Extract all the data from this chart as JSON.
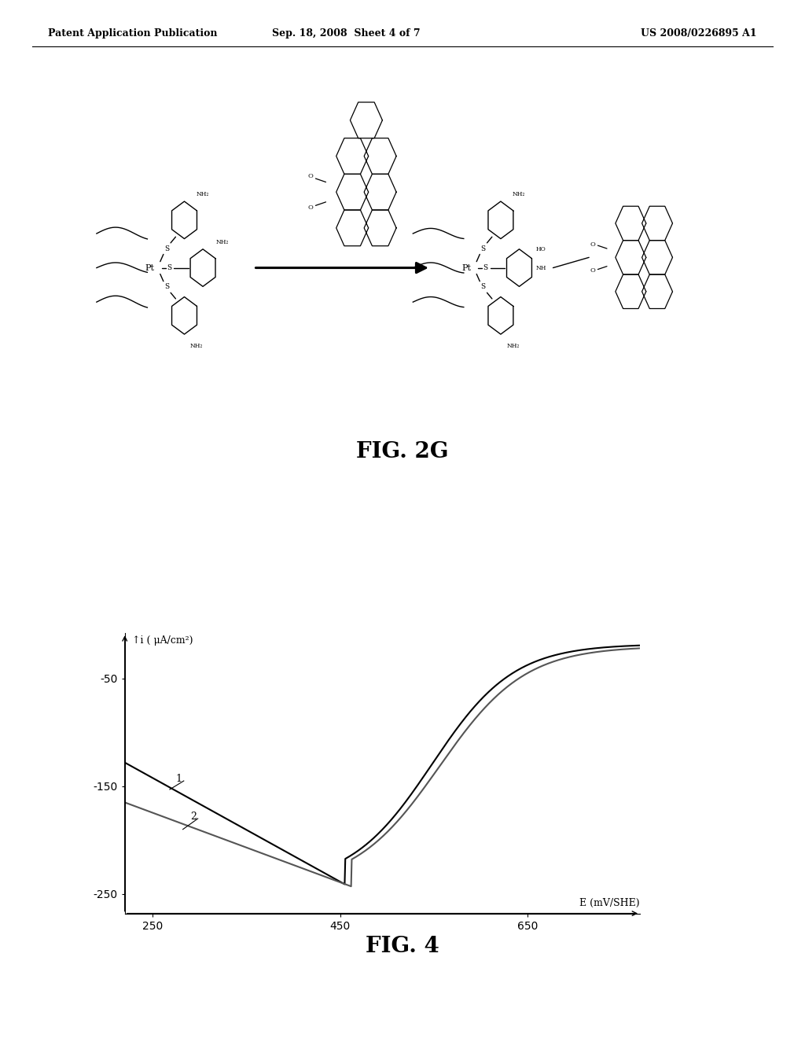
{
  "page_width": 10.24,
  "page_height": 13.2,
  "background_color": "#ffffff",
  "header_left": "Patent Application Publication",
  "header_center": "Sep. 18, 2008  Sheet 4 of 7",
  "header_right": "US 2008/0226895 A1",
  "header_fontsize": 9,
  "fig2g_label": "FIG. 2G",
  "fig4_label": "FIG. 4",
  "ylabel": "↑i ( μA/cm²)",
  "xlabel": "E (mV/SHE)",
  "yticks": [
    -250,
    -150,
    -50
  ],
  "xticks": [
    250,
    450,
    650
  ],
  "xlim": [
    220,
    770
  ],
  "ylim": [
    -268,
    -8
  ],
  "line_color1": "#000000",
  "line_color2": "#555555"
}
